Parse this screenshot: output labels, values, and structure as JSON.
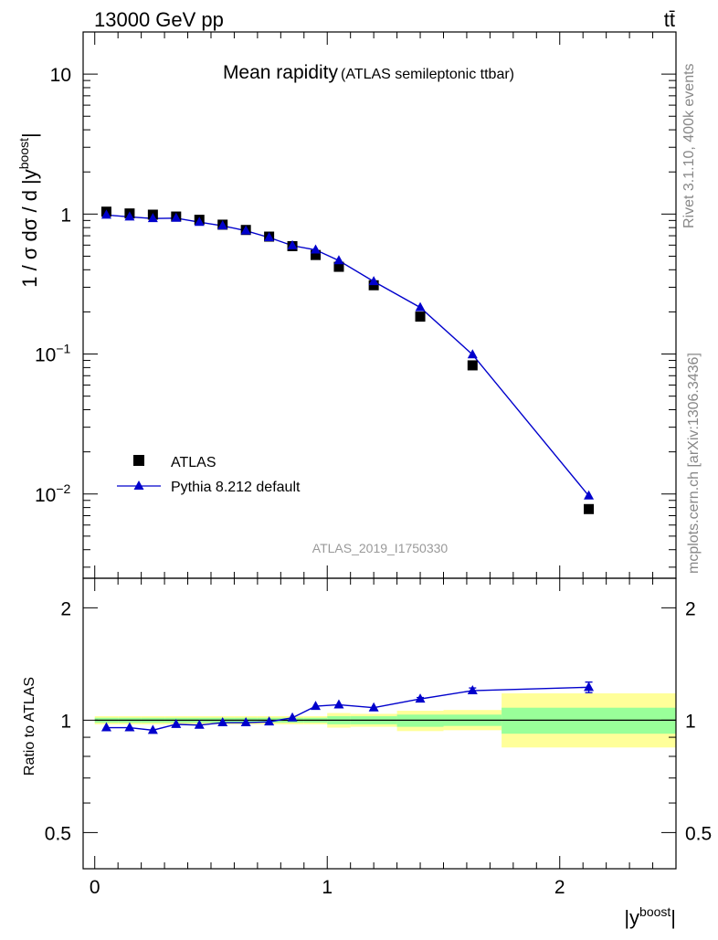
{
  "header": {
    "left": "13000 GeV pp",
    "right": "tt̄"
  },
  "title": {
    "main": "Mean rapidity",
    "sub": "(ATLAS semileptonic ttbar)"
  },
  "side_labels": {
    "rivet": "Rivet 3.1.10,  400k events",
    "mcplots": "mcplots.cern.ch [arXiv:1306.3436]"
  },
  "analysis_id": "ATLAS_2019_I1750330",
  "colors": {
    "data": "#000000",
    "mc": "#0000cc",
    "band_inner": "#99ff99",
    "band_outer": "#ffff99"
  },
  "chart_data": [
    {
      "type": "scatter",
      "panel": "main",
      "yscale": "log",
      "ylim": [
        0.0025,
        20
      ],
      "xlim": [
        -0.05,
        2.5
      ],
      "ylabel": {
        "text": "1 / σ dσ / d |y",
        "sup": "boost",
        "tail": "|"
      },
      "ytick_labels": [
        {
          "value": 10,
          "base": "10",
          "exp": ""
        },
        {
          "value": 1,
          "base": "1",
          "exp": ""
        },
        {
          "value": 0.1,
          "base": "10",
          "exp": "−1"
        },
        {
          "value": 0.01,
          "base": "10",
          "exp": "−2"
        }
      ],
      "legend": {
        "placement": "lower-left",
        "entries": [
          {
            "label": "ATLAS",
            "marker": "square"
          },
          {
            "label": "Pythia 8.212 default",
            "marker": "triangle"
          }
        ]
      },
      "series": [
        {
          "name": "ATLAS",
          "x": [
            0.05,
            0.15,
            0.25,
            0.35,
            0.45,
            0.55,
            0.65,
            0.75,
            0.85,
            0.95,
            1.05,
            1.2,
            1.4,
            1.625,
            2.125
          ],
          "y": [
            1.04,
            1.01,
            0.99,
            0.96,
            0.91,
            0.84,
            0.77,
            0.69,
            0.59,
            0.51,
            0.42,
            0.31,
            0.185,
            0.083,
            0.0078
          ],
          "xerr": [
            0.05,
            0.05,
            0.05,
            0.05,
            0.05,
            0.05,
            0.05,
            0.05,
            0.05,
            0.05,
            0.05,
            0.1,
            0.1,
            0.125,
            0.375
          ]
        },
        {
          "name": "Pythia 8.212 default",
          "x": [
            0.05,
            0.15,
            0.25,
            0.35,
            0.45,
            0.55,
            0.65,
            0.75,
            0.85,
            0.95,
            1.05,
            1.2,
            1.4,
            1.625,
            2.125
          ],
          "y": [
            0.985,
            0.955,
            0.93,
            0.935,
            0.875,
            0.825,
            0.76,
            0.68,
            0.595,
            0.555,
            0.465,
            0.33,
            0.215,
            0.099,
            0.0097
          ]
        }
      ]
    },
    {
      "type": "line",
      "panel": "ratio",
      "yscale": "log",
      "ylim": [
        0.4,
        2.4
      ],
      "xlim": [
        -0.05,
        2.5
      ],
      "ylabel": "Ratio to ATLAS",
      "xlabel": {
        "text": "|y",
        "sup": "boost",
        "tail": "|"
      },
      "ytick_labels": [
        "2",
        "1",
        "0.5"
      ],
      "ytick_values": [
        2,
        1,
        0.5
      ],
      "xtick_labels": [
        "0",
        "1",
        "2"
      ],
      "xtick_values": [
        0,
        1,
        2
      ],
      "bands": {
        "edges": [
          0.0,
          0.1,
          0.2,
          0.3,
          0.4,
          0.5,
          0.6,
          0.7,
          0.8,
          0.9,
          1.0,
          1.1,
          1.3,
          1.5,
          1.75,
          2.5
        ],
        "inner_lo": [
          0.985,
          0.985,
          0.985,
          0.985,
          0.985,
          0.985,
          0.985,
          0.985,
          0.985,
          0.985,
          0.975,
          0.975,
          0.96,
          0.965,
          0.92
        ],
        "inner_hi": [
          1.015,
          1.015,
          1.015,
          1.015,
          1.015,
          1.015,
          1.015,
          1.015,
          1.015,
          1.015,
          1.025,
          1.025,
          1.035,
          1.035,
          1.08
        ],
        "outer_lo": [
          0.975,
          0.975,
          0.975,
          0.975,
          0.975,
          0.975,
          0.975,
          0.975,
          0.975,
          0.975,
          0.955,
          0.96,
          0.935,
          0.94,
          0.845
        ],
        "outer_hi": [
          1.025,
          1.025,
          1.025,
          1.025,
          1.025,
          1.025,
          1.025,
          1.025,
          1.025,
          1.025,
          1.045,
          1.04,
          1.06,
          1.065,
          1.18
        ]
      },
      "series": [
        {
          "name": "Pythia 8.212 default",
          "x": [
            0.05,
            0.15,
            0.25,
            0.35,
            0.45,
            0.55,
            0.65,
            0.75,
            0.85,
            0.95,
            1.05,
            1.2,
            1.4,
            1.625,
            2.125
          ],
          "y": [
            0.955,
            0.955,
            0.94,
            0.975,
            0.97,
            0.985,
            0.985,
            0.99,
            1.015,
            1.09,
            1.1,
            1.08,
            1.14,
            1.2,
            1.225
          ],
          "yerr": [
            0.005,
            0.005,
            0.005,
            0.005,
            0.005,
            0.005,
            0.005,
            0.005,
            0.005,
            0.008,
            0.008,
            0.008,
            0.01,
            0.02,
            0.04
          ]
        }
      ]
    }
  ]
}
